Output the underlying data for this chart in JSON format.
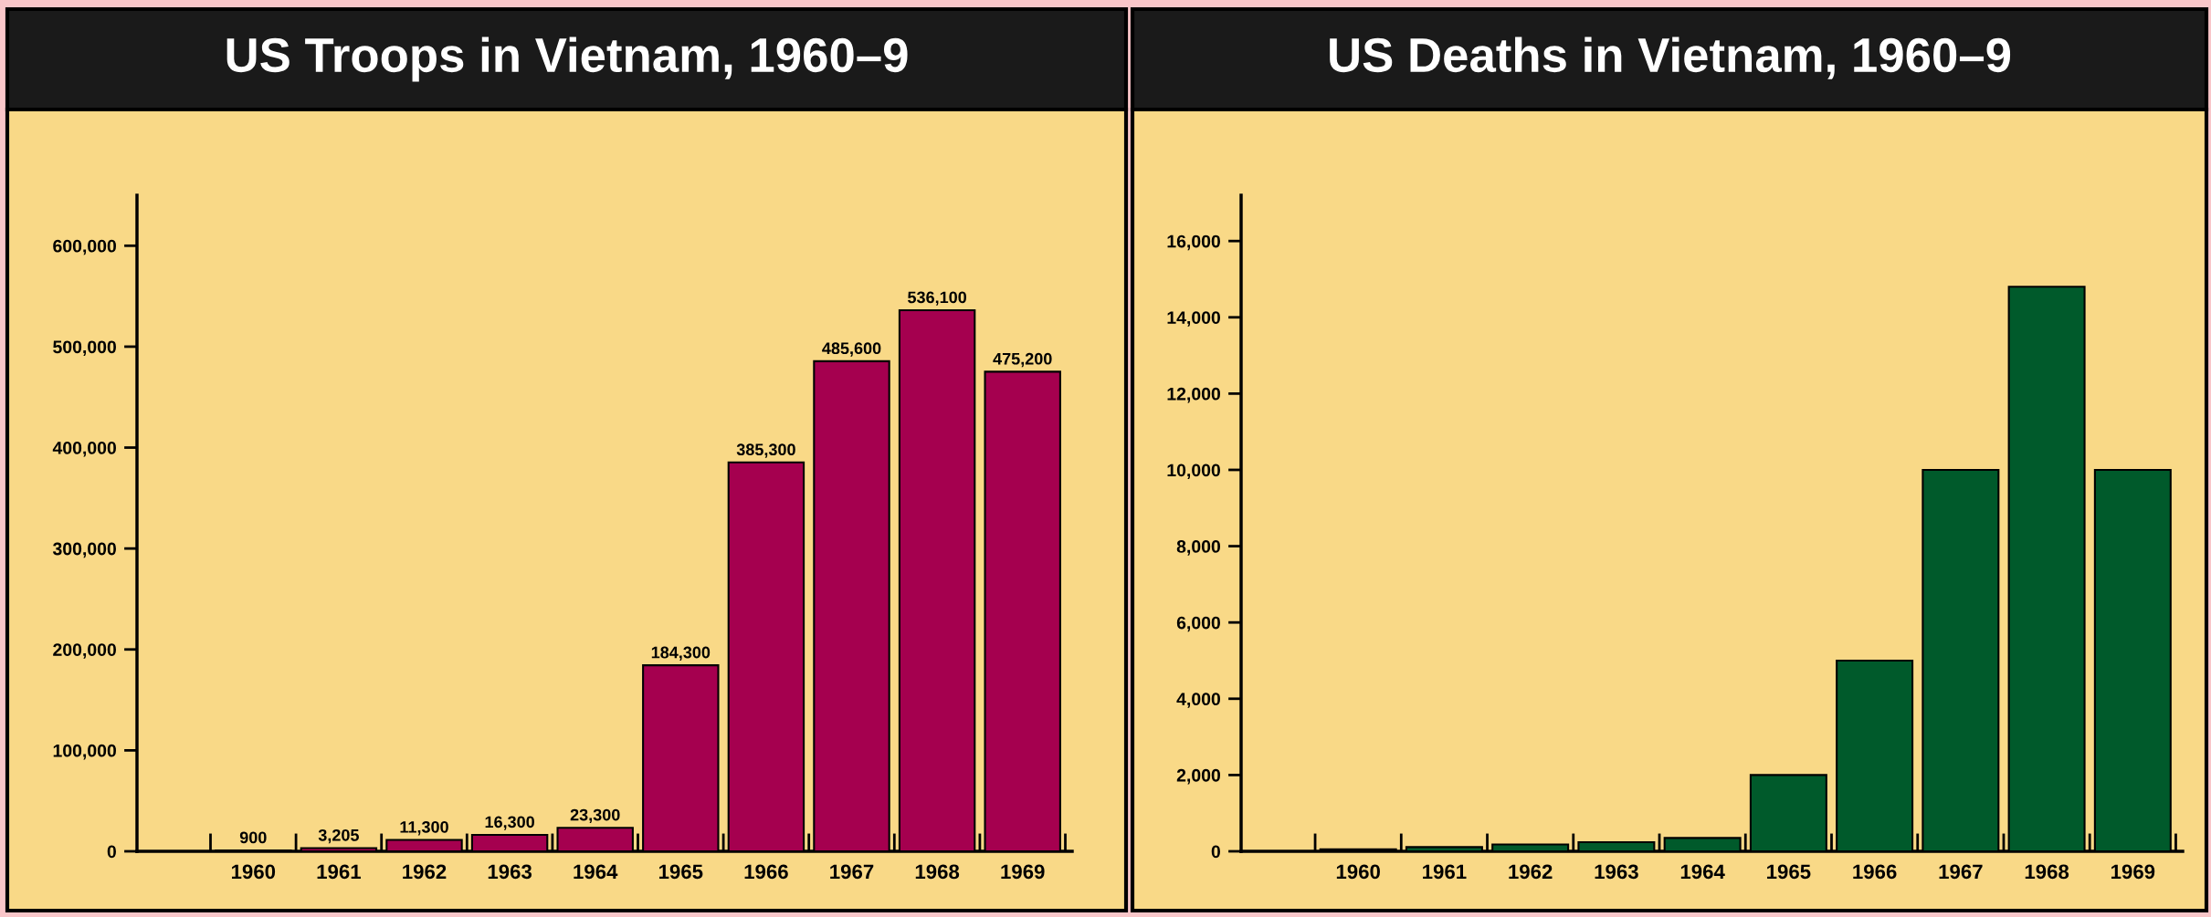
{
  "chart_data": [
    {
      "type": "bar",
      "title": "US Troops in Vietnam, 1960–9",
      "categories": [
        "1960",
        "1961",
        "1962",
        "1963",
        "1964",
        "1965",
        "1966",
        "1967",
        "1968",
        "1969"
      ],
      "values": [
        900,
        3205,
        11300,
        16300,
        23300,
        184300,
        385300,
        485600,
        536100,
        475200
      ],
      "value_labels": [
        "900",
        "3,205",
        "11,300",
        "16,300",
        "23,300",
        "184,300",
        "385,300",
        "485,600",
        "536,100",
        "475,200"
      ],
      "color": "#a5004f",
      "ylim": [
        0,
        650000
      ],
      "yticks": [
        0,
        {
          "value": 100000,
          "label": "100,000"
        },
        {
          "value": 200000,
          "label": "200,000"
        },
        {
          "value": 300000,
          "label": "300,000"
        },
        {
          "value": 400000,
          "label": "400,000"
        },
        {
          "value": 500000,
          "label": "500,000"
        },
        {
          "value": 600000,
          "label": "600,000"
        }
      ]
    },
    {
      "type": "bar",
      "title": "US Deaths in Vietnam, 1960–9",
      "categories": [
        "1960",
        "1961",
        "1962",
        "1963",
        "1964",
        "1965",
        "1966",
        "1967",
        "1968",
        "1969"
      ],
      "values": [
        50,
        110,
        180,
        240,
        350,
        2000,
        5000,
        10000,
        14800,
        10000
      ],
      "color": "#005a2b",
      "ylim": [
        0,
        17200
      ],
      "yticks": [
        0,
        {
          "value": 2000,
          "label": "2,000"
        },
        {
          "value": 4000,
          "label": "4,000"
        },
        {
          "value": 6000,
          "label": "6,000"
        },
        {
          "value": 8000,
          "label": "8,000"
        },
        {
          "value": 10000,
          "label": "10,000"
        },
        {
          "value": 12000,
          "label": "12,000"
        },
        {
          "value": 14000,
          "label": "14,000"
        },
        {
          "value": 16000,
          "label": "16,000"
        }
      ]
    }
  ]
}
